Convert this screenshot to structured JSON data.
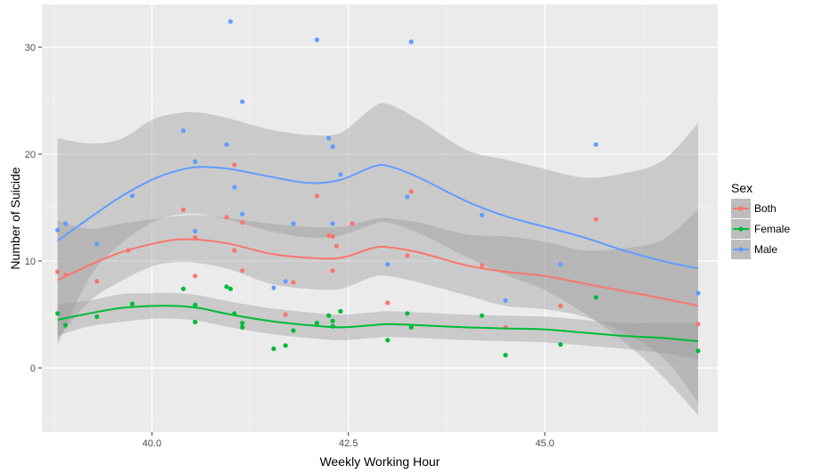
{
  "chart_data": {
    "type": "scatter",
    "xlabel": "Weekly Working Hour",
    "ylabel": "Number of Suicide",
    "xlim": [
      38.6,
      47.2
    ],
    "ylim": [
      -6,
      34
    ],
    "x_ticks": [
      40.0,
      42.5,
      45.0
    ],
    "x_tick_labels": [
      "40.0",
      "42.5",
      "45.0"
    ],
    "y_ticks": [
      0,
      10,
      20,
      30
    ],
    "y_tick_labels": [
      "0",
      "10",
      "20",
      "30"
    ],
    "grid": true,
    "legend": {
      "title": "Sex",
      "position": "right"
    },
    "series": [
      {
        "name": "Both",
        "color": "#F8766D",
        "points": [
          [
            38.8,
            9.0
          ],
          [
            38.9,
            8.7
          ],
          [
            39.3,
            8.1
          ],
          [
            39.7,
            11.0
          ],
          [
            40.4,
            14.8
          ],
          [
            40.55,
            12.2
          ],
          [
            40.55,
            8.6
          ],
          [
            40.95,
            14.1
          ],
          [
            41.05,
            19.0
          ],
          [
            41.05,
            11.0
          ],
          [
            41.15,
            13.6
          ],
          [
            41.15,
            9.1
          ],
          [
            41.7,
            5.0
          ],
          [
            41.8,
            8.0
          ],
          [
            42.1,
            16.1
          ],
          [
            42.25,
            12.4
          ],
          [
            42.3,
            12.3
          ],
          [
            42.3,
            9.1
          ],
          [
            42.35,
            11.4
          ],
          [
            42.55,
            13.5
          ],
          [
            43.0,
            6.1
          ],
          [
            43.25,
            10.5
          ],
          [
            43.3,
            16.5
          ],
          [
            44.2,
            9.6
          ],
          [
            44.5,
            3.8
          ],
          [
            45.2,
            5.8
          ],
          [
            45.65,
            13.9
          ],
          [
            46.95,
            4.1
          ]
        ],
        "smooth": [
          [
            38.8,
            8.2
          ],
          [
            39.2,
            9.6
          ],
          [
            39.6,
            10.8
          ],
          [
            40.0,
            11.6
          ],
          [
            40.3,
            12.0
          ],
          [
            40.6,
            12.0
          ],
          [
            41.0,
            11.6
          ],
          [
            41.5,
            10.7
          ],
          [
            42.0,
            10.3
          ],
          [
            42.4,
            10.3
          ],
          [
            42.8,
            11.2
          ],
          [
            43.0,
            11.3
          ],
          [
            43.4,
            10.8
          ],
          [
            44.0,
            9.6
          ],
          [
            44.5,
            9.0
          ],
          [
            45.0,
            8.6
          ],
          [
            45.5,
            7.9
          ],
          [
            46.0,
            7.2
          ],
          [
            46.5,
            6.5
          ],
          [
            46.95,
            5.8
          ]
        ],
        "band_lower": [
          [
            38.8,
            2.7
          ],
          [
            39.2,
            6.2
          ],
          [
            39.6,
            8.1
          ],
          [
            40.0,
            9.5
          ],
          [
            40.3,
            9.9
          ],
          [
            40.6,
            9.8
          ],
          [
            41.0,
            9.2
          ],
          [
            41.5,
            7.9
          ],
          [
            42.0,
            7.4
          ],
          [
            42.4,
            7.4
          ],
          [
            42.8,
            8.5
          ],
          [
            43.0,
            8.6
          ],
          [
            43.4,
            8.0
          ],
          [
            44.0,
            6.8
          ],
          [
            44.5,
            5.8
          ],
          [
            45.0,
            5.5
          ],
          [
            45.5,
            4.8
          ],
          [
            46.0,
            3.3
          ],
          [
            46.5,
            1.0
          ],
          [
            46.95,
            -3.2
          ]
        ],
        "band_upper": [
          [
            38.8,
            13.8
          ],
          [
            39.2,
            13.0
          ],
          [
            39.6,
            13.5
          ],
          [
            40.0,
            13.9
          ],
          [
            40.3,
            14.2
          ],
          [
            40.6,
            14.3
          ],
          [
            41.0,
            14.0
          ],
          [
            41.5,
            13.5
          ],
          [
            42.0,
            13.2
          ],
          [
            42.4,
            13.2
          ],
          [
            42.8,
            13.9
          ],
          [
            43.0,
            14.0
          ],
          [
            43.4,
            13.6
          ],
          [
            44.0,
            12.5
          ],
          [
            44.5,
            12.3
          ],
          [
            45.0,
            11.8
          ],
          [
            45.5,
            11.0
          ],
          [
            46.0,
            11.2
          ],
          [
            46.5,
            12.0
          ],
          [
            46.95,
            14.8
          ]
        ]
      },
      {
        "name": "Female",
        "color": "#00BA38",
        "points": [
          [
            38.8,
            5.1
          ],
          [
            38.9,
            4.0
          ],
          [
            39.3,
            4.8
          ],
          [
            39.75,
            6.0
          ],
          [
            40.4,
            7.4
          ],
          [
            40.55,
            4.3
          ],
          [
            40.55,
            5.9
          ],
          [
            40.95,
            7.6
          ],
          [
            41.0,
            7.4
          ],
          [
            41.05,
            5.1
          ],
          [
            41.15,
            3.8
          ],
          [
            41.15,
            4.2
          ],
          [
            41.55,
            1.8
          ],
          [
            41.7,
            2.1
          ],
          [
            41.8,
            3.5
          ],
          [
            42.1,
            4.2
          ],
          [
            42.25,
            4.9
          ],
          [
            42.3,
            3.9
          ],
          [
            42.3,
            4.4
          ],
          [
            42.4,
            5.3
          ],
          [
            43.0,
            2.6
          ],
          [
            43.25,
            5.1
          ],
          [
            43.3,
            3.8
          ],
          [
            44.2,
            4.9
          ],
          [
            44.5,
            1.2
          ],
          [
            45.2,
            2.2
          ],
          [
            45.65,
            6.6
          ],
          [
            46.95,
            1.6
          ]
        ],
        "smooth": [
          [
            38.8,
            4.5
          ],
          [
            39.2,
            5.1
          ],
          [
            39.6,
            5.6
          ],
          [
            40.0,
            5.8
          ],
          [
            40.3,
            5.8
          ],
          [
            40.6,
            5.6
          ],
          [
            41.0,
            5.0
          ],
          [
            41.5,
            4.4
          ],
          [
            42.0,
            4.0
          ],
          [
            42.4,
            3.8
          ],
          [
            42.8,
            4.0
          ],
          [
            43.0,
            4.1
          ],
          [
            43.4,
            4.0
          ],
          [
            44.0,
            3.8
          ],
          [
            44.5,
            3.7
          ],
          [
            45.0,
            3.6
          ],
          [
            45.5,
            3.3
          ],
          [
            46.0,
            3.0
          ],
          [
            46.5,
            2.8
          ],
          [
            46.95,
            2.5
          ]
        ],
        "band_lower": [
          [
            38.8,
            3.0
          ],
          [
            39.2,
            3.9
          ],
          [
            39.6,
            4.3
          ],
          [
            40.0,
            4.6
          ],
          [
            40.3,
            4.6
          ],
          [
            40.6,
            4.4
          ],
          [
            41.0,
            3.8
          ],
          [
            41.5,
            3.2
          ],
          [
            42.0,
            2.8
          ],
          [
            42.4,
            2.6
          ],
          [
            42.8,
            2.8
          ],
          [
            43.0,
            2.9
          ],
          [
            43.4,
            2.8
          ],
          [
            44.0,
            2.6
          ],
          [
            44.5,
            2.5
          ],
          [
            45.0,
            2.4
          ],
          [
            45.5,
            2.1
          ],
          [
            46.0,
            1.8
          ],
          [
            46.5,
            1.4
          ],
          [
            46.95,
            0.8
          ]
        ],
        "band_upper": [
          [
            38.8,
            6.0
          ],
          [
            39.2,
            6.3
          ],
          [
            39.6,
            6.9
          ],
          [
            40.0,
            7.0
          ],
          [
            40.3,
            7.0
          ],
          [
            40.6,
            6.8
          ],
          [
            41.0,
            6.2
          ],
          [
            41.5,
            5.6
          ],
          [
            42.0,
            5.2
          ],
          [
            42.4,
            5.0
          ],
          [
            42.8,
            5.2
          ],
          [
            43.0,
            5.3
          ],
          [
            43.4,
            5.2
          ],
          [
            44.0,
            5.0
          ],
          [
            44.5,
            4.9
          ],
          [
            45.0,
            4.8
          ],
          [
            45.5,
            4.5
          ],
          [
            46.0,
            4.2
          ],
          [
            46.5,
            4.2
          ],
          [
            46.95,
            4.2
          ]
        ]
      },
      {
        "name": "Male",
        "color": "#619CFF",
        "points": [
          [
            38.8,
            12.9
          ],
          [
            38.9,
            13.5
          ],
          [
            39.3,
            11.6
          ],
          [
            39.75,
            16.1
          ],
          [
            40.4,
            22.2
          ],
          [
            40.55,
            19.3
          ],
          [
            40.55,
            12.8
          ],
          [
            40.95,
            20.9
          ],
          [
            41.0,
            32.4
          ],
          [
            41.05,
            16.9
          ],
          [
            41.15,
            24.9
          ],
          [
            41.15,
            14.4
          ],
          [
            41.55,
            7.5
          ],
          [
            41.7,
            8.1
          ],
          [
            41.8,
            13.5
          ],
          [
            42.1,
            30.7
          ],
          [
            42.25,
            21.5
          ],
          [
            42.3,
            20.7
          ],
          [
            42.3,
            13.5
          ],
          [
            42.4,
            18.1
          ],
          [
            43.0,
            9.7
          ],
          [
            43.25,
            16.0
          ],
          [
            43.3,
            30.5
          ],
          [
            44.2,
            14.3
          ],
          [
            44.5,
            6.3
          ],
          [
            45.2,
            9.7
          ],
          [
            45.65,
            20.9
          ],
          [
            46.95,
            7.0
          ]
        ],
        "smooth": [
          [
            38.8,
            11.9
          ],
          [
            39.2,
            14.0
          ],
          [
            39.6,
            16.0
          ],
          [
            40.0,
            17.6
          ],
          [
            40.3,
            18.4
          ],
          [
            40.6,
            18.8
          ],
          [
            41.0,
            18.6
          ],
          [
            41.5,
            17.9
          ],
          [
            42.0,
            17.3
          ],
          [
            42.4,
            17.6
          ],
          [
            42.8,
            18.8
          ],
          [
            43.0,
            18.9
          ],
          [
            43.4,
            17.8
          ],
          [
            44.0,
            15.6
          ],
          [
            44.5,
            14.2
          ],
          [
            45.0,
            13.2
          ],
          [
            45.5,
            12.2
          ],
          [
            46.0,
            11.0
          ],
          [
            46.5,
            10.0
          ],
          [
            46.95,
            9.3
          ]
        ],
        "band_lower": [
          [
            38.8,
            2.2
          ],
          [
            39.2,
            8.4
          ],
          [
            39.6,
            11.6
          ],
          [
            40.0,
            13.6
          ],
          [
            40.3,
            14.3
          ],
          [
            40.6,
            14.4
          ],
          [
            41.0,
            13.8
          ],
          [
            41.5,
            12.8
          ],
          [
            42.0,
            12.2
          ],
          [
            42.4,
            12.4
          ],
          [
            42.8,
            13.4
          ],
          [
            43.0,
            13.6
          ],
          [
            43.4,
            12.6
          ],
          [
            44.0,
            10.4
          ],
          [
            44.5,
            8.7
          ],
          [
            45.0,
            7.3
          ],
          [
            45.5,
            5.1
          ],
          [
            46.0,
            2.5
          ],
          [
            46.5,
            -0.8
          ],
          [
            46.95,
            -4.4
          ]
        ],
        "band_upper": [
          [
            38.8,
            21.5
          ],
          [
            39.2,
            21.0
          ],
          [
            39.6,
            21.4
          ],
          [
            40.0,
            23.2
          ],
          [
            40.3,
            23.8
          ],
          [
            40.6,
            23.9
          ],
          [
            41.0,
            23.3
          ],
          [
            41.5,
            22.3
          ],
          [
            42.0,
            21.8
          ],
          [
            42.4,
            22.0
          ],
          [
            42.8,
            24.3
          ],
          [
            43.0,
            24.7
          ],
          [
            43.4,
            23.2
          ],
          [
            44.0,
            20.4
          ],
          [
            44.5,
            19.5
          ],
          [
            45.0,
            18.6
          ],
          [
            45.5,
            17.8
          ],
          [
            46.0,
            18.2
          ],
          [
            46.5,
            19.4
          ],
          [
            46.95,
            22.9
          ]
        ]
      }
    ]
  }
}
